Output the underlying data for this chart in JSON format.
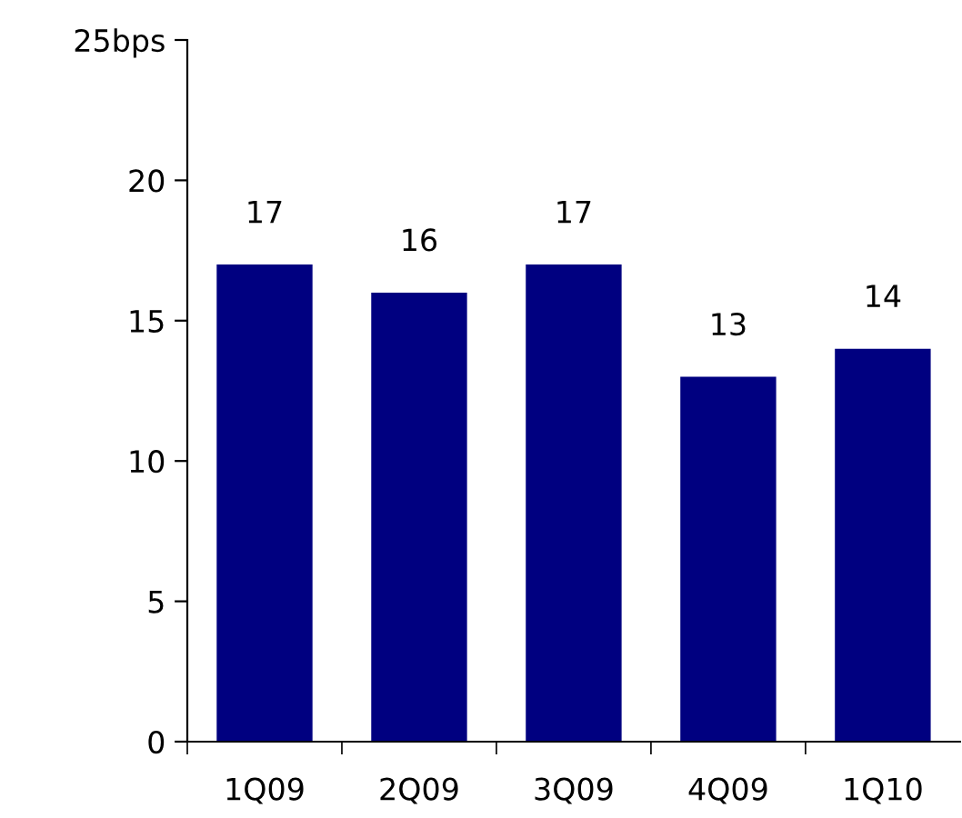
{
  "chart_data": {
    "type": "bar",
    "categories": [
      "1Q09",
      "2Q09",
      "3Q09",
      "4Q09",
      "1Q10"
    ],
    "values": [
      17,
      16,
      17,
      13,
      14
    ],
    "color": "#000080",
    "ylim": [
      0,
      25
    ],
    "yticks": [
      0,
      5,
      10,
      15,
      20,
      {
        "value": 25,
        "label": "25bps"
      }
    ],
    "data_labels": true,
    "grid": false,
    "legend": false
  }
}
